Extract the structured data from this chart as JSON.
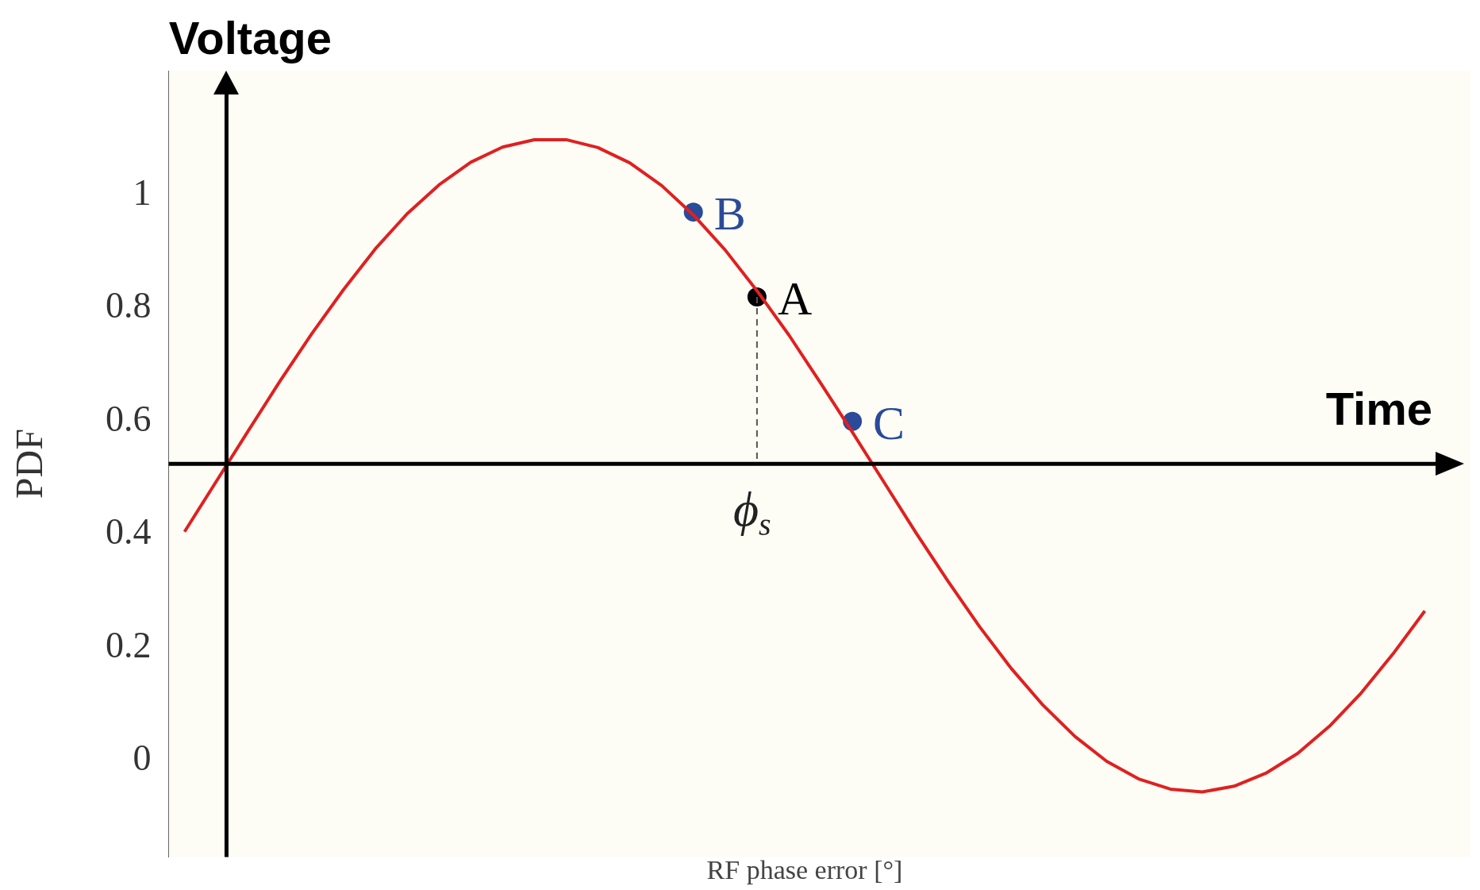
{
  "chart_data": {
    "type": "line",
    "xlabel": "RF phase error [°]",
    "ylabel": "PDF",
    "categories": [
      null,
      null,
      null,
      null,
      null,
      null,
      null,
      null,
      null,
      null,
      null,
      null,
      null,
      null,
      null,
      null,
      null,
      null,
      null,
      null,
      null,
      null,
      null,
      null,
      null,
      null,
      null,
      null,
      null,
      null,
      null,
      null,
      null,
      null,
      null,
      null,
      null,
      null,
      null,
      null
    ],
    "series": [
      {
        "type": "line",
        "color": "#e02020",
        "values": [
          0.405,
          0.494,
          0.583,
          0.671,
          0.755,
          0.833,
          0.905,
          0.967,
          1.018,
          1.058,
          1.085,
          1.098,
          1.098,
          1.084,
          1.057,
          1.017,
          0.965,
          0.903,
          0.831,
          0.753,
          0.668,
          0.581,
          0.492,
          0.403,
          0.318,
          0.237,
          0.163,
          0.098,
          0.043,
          -0.001,
          -0.032,
          -0.05,
          -0.055,
          -0.045,
          -0.022,
          0.013,
          0.061,
          0.12,
          0.189,
          0.265
        ]
      },
      {
        "type": "scatter",
        "name": "B",
        "color": "#2a4a9a",
        "marker": "circle",
        "values": [
          null,
          null,
          null,
          null,
          null,
          null,
          null,
          null,
          null,
          null,
          null,
          null,
          null,
          null,
          null,
          null,
          0.97,
          null,
          null,
          null,
          null,
          null,
          null,
          null,
          null,
          null,
          null,
          null,
          null,
          null,
          null,
          null,
          null,
          null,
          null,
          null,
          null,
          null,
          null,
          null
        ]
      },
      {
        "type": "scatter",
        "name": "A",
        "color": "#000000",
        "marker": "circle",
        "values": [
          null,
          null,
          null,
          null,
          null,
          null,
          null,
          null,
          null,
          null,
          null,
          null,
          null,
          null,
          null,
          null,
          null,
          null,
          0.82,
          null,
          null,
          null,
          null,
          null,
          null,
          null,
          null,
          null,
          null,
          null,
          null,
          null,
          null,
          null,
          null,
          null,
          null,
          null,
          null,
          null
        ]
      },
      {
        "type": "scatter",
        "name": "C",
        "color": "#2a4a9a",
        "marker": "circle",
        "values": [
          null,
          null,
          null,
          null,
          null,
          null,
          null,
          null,
          null,
          null,
          null,
          null,
          null,
          null,
          null,
          null,
          null,
          null,
          null,
          null,
          null,
          0.6,
          null,
          null,
          null,
          null,
          null,
          null,
          null,
          null,
          null,
          null,
          null,
          null,
          null,
          null,
          null,
          null,
          null,
          null
        ]
      }
    ],
    "ylim": [
      -0.17,
      1.22
    ],
    "yticks": [
      0,
      0.2,
      0.4,
      0.6,
      0.8,
      1
    ],
    "ref_lines": [
      {
        "axis": "y",
        "value": 0.525,
        "label": "Time",
        "color": "#000000"
      }
    ],
    "annotations": [
      "Voltage",
      "ϕ$_{s}$"
    ],
    "tick_labels": "y",
    "grid": false,
    "legend": false
  }
}
